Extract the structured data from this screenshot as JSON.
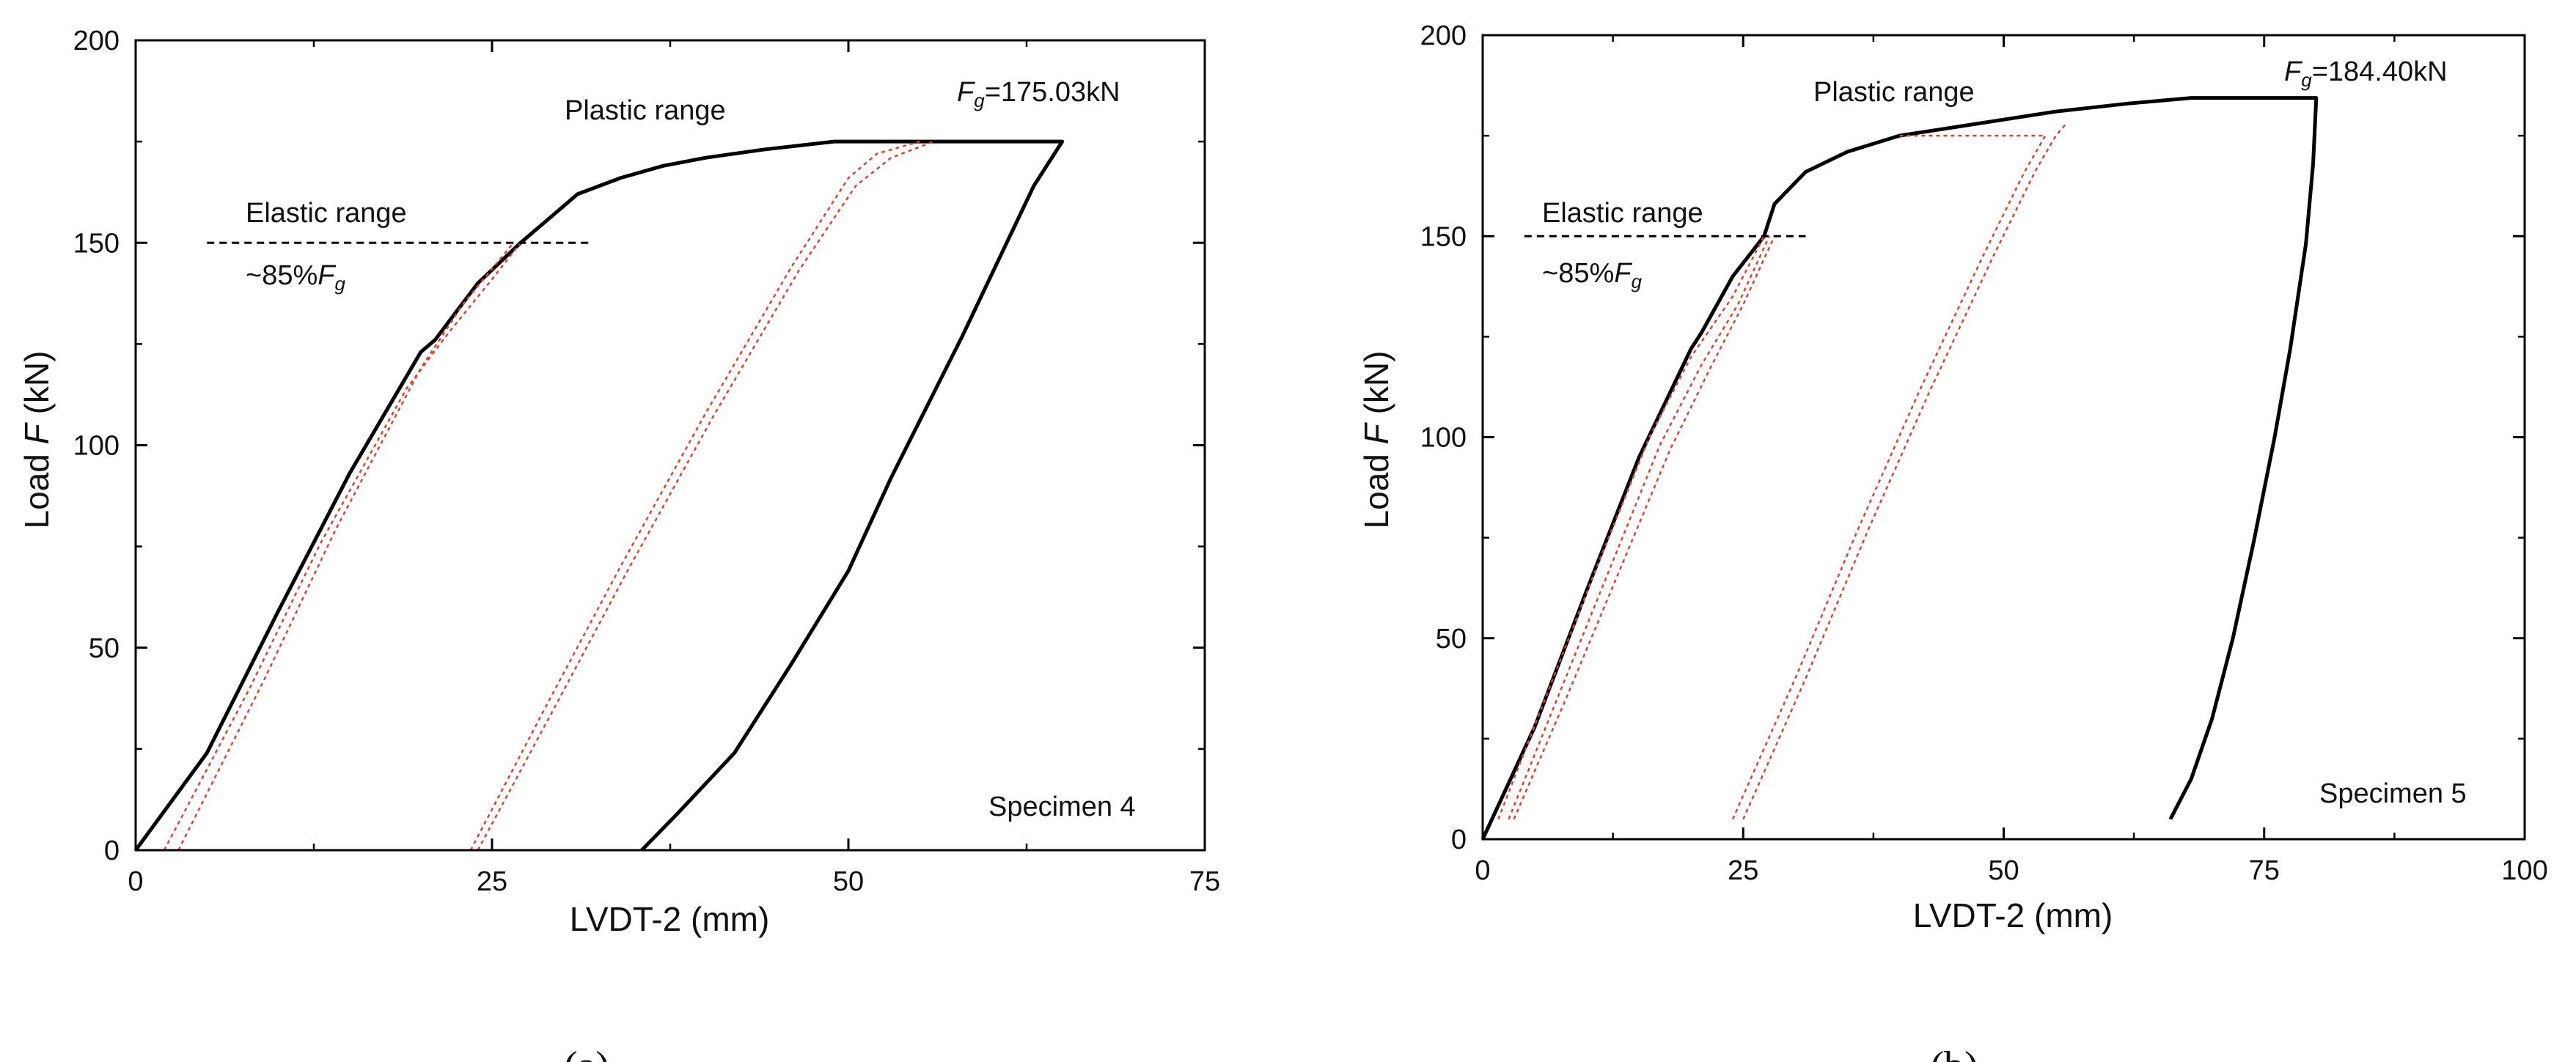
{
  "figure": {
    "caption_a": "(a)",
    "caption_b": "(b)"
  },
  "chart_data": [
    {
      "type": "line",
      "panel": "a",
      "title": "",
      "xlabel": "LVDT-2 (mm)",
      "ylabel_prefix": "Load ",
      "ylabel_var": "F",
      "ylabel_suffix": " (kN)",
      "xlim": [
        0,
        75
      ],
      "ylim": [
        0,
        200
      ],
      "xticks": [
        0,
        25,
        50,
        75
      ],
      "yticks": [
        0,
        50,
        100,
        150,
        200
      ],
      "grid": false,
      "colors": {
        "main": "#000000",
        "cycles": "#d9442e",
        "threshold": "#000000"
      },
      "annotations": {
        "specimen": "Specimen 4",
        "plastic": "Plastic range",
        "elastic": "Elastic range",
        "pct_prefix": "~85%",
        "fg_var": "F",
        "fg_sub": "g",
        "fg_value": "=175.03kN"
      },
      "threshold_line": {
        "x": [
          5,
          32
        ],
        "y": 150
      },
      "series": [
        {
          "style": "solid",
          "points": [
            [
              0,
              0
            ],
            [
              5,
              24
            ],
            [
              10,
              59
            ],
            [
              15,
              93
            ],
            [
              20,
              123
            ],
            [
              21,
              126
            ],
            [
              24,
              140
            ],
            [
              27,
              150
            ],
            [
              29,
              156
            ],
            [
              31,
              162
            ],
            [
              34,
              166
            ],
            [
              37,
              169
            ],
            [
              40,
              171
            ],
            [
              44,
              173
            ],
            [
              49,
              175
            ],
            [
              65,
              175
            ],
            [
              63,
              164
            ],
            [
              58,
              127
            ],
            [
              53,
              92
            ],
            [
              50,
              69
            ],
            [
              46,
              46
            ],
            [
              42,
              24
            ],
            [
              38,
              9
            ],
            [
              35.5,
              0
            ]
          ]
        },
        {
          "style": "dotted",
          "points": [
            [
              2,
              0
            ],
            [
              8,
              40
            ],
            [
              13,
              76
            ],
            [
              19,
              114
            ],
            [
              22,
              128
            ],
            [
              25,
              141
            ],
            [
              27,
              150
            ]
          ]
        },
        {
          "style": "dotted",
          "points": [
            [
              3,
              0
            ],
            [
              9,
              42
            ],
            [
              14,
              79
            ],
            [
              20,
              119
            ],
            [
              23,
              135
            ],
            [
              26.5,
              150
            ]
          ]
        },
        {
          "style": "dotted",
          "points": [
            [
              23.5,
              0
            ],
            [
              29,
              37
            ],
            [
              34,
              70
            ],
            [
              40,
              108
            ],
            [
              46,
              144
            ],
            [
              50,
              166
            ],
            [
              52,
              172
            ],
            [
              55,
              175
            ]
          ]
        },
        {
          "style": "dotted",
          "points": [
            [
              24,
              0
            ],
            [
              29.5,
              36
            ],
            [
              34.5,
              69
            ],
            [
              40.5,
              107
            ],
            [
              46.5,
              143
            ],
            [
              50.5,
              164
            ],
            [
              53,
              171
            ],
            [
              56,
              175
            ]
          ]
        }
      ]
    },
    {
      "type": "line",
      "panel": "b",
      "title": "",
      "xlabel": "LVDT-2 (mm)",
      "ylabel_prefix": "Load ",
      "ylabel_var": "F",
      "ylabel_suffix": " (kN)",
      "xlim": [
        0,
        100
      ],
      "ylim": [
        0,
        200
      ],
      "xticks": [
        0,
        25,
        50,
        75,
        100
      ],
      "yticks": [
        0,
        50,
        100,
        150,
        200
      ],
      "grid": false,
      "colors": {
        "main": "#000000",
        "cycles": "#d9442e",
        "threshold": "#000000"
      },
      "annotations": {
        "specimen": "Specimen 5",
        "plastic": "Plastic range",
        "elastic": "Elastic range",
        "pct_prefix": "~85%",
        "fg_var": "F",
        "fg_sub": "g",
        "fg_value": "=184.40kN"
      },
      "threshold_line": {
        "x": [
          4,
          31
        ],
        "y": 150
      },
      "series": [
        {
          "style": "solid",
          "points": [
            [
              0,
              0
            ],
            [
              5,
              28
            ],
            [
              10,
              62
            ],
            [
              15,
              95
            ],
            [
              20,
              122
            ],
            [
              21,
              126
            ],
            [
              24,
              140
            ],
            [
              27,
              150
            ],
            [
              28,
              158
            ],
            [
              31,
              166
            ],
            [
              35,
              171
            ],
            [
              40,
              175
            ],
            [
              45,
              177
            ],
            [
              50,
              179
            ],
            [
              55,
              181
            ],
            [
              62,
              183
            ],
            [
              68,
              184.4
            ],
            [
              80,
              184.4
            ],
            [
              79.7,
              168
            ],
            [
              79,
              148
            ],
            [
              77.5,
              122
            ],
            [
              76,
              100
            ],
            [
              74,
              74
            ],
            [
              72,
              50
            ],
            [
              70,
              30
            ],
            [
              68,
              15
            ],
            [
              66,
              5
            ]
          ]
        },
        {
          "style": "dotted",
          "points": [
            [
              1.5,
              5
            ],
            [
              6,
              35
            ],
            [
              11,
              68
            ],
            [
              16,
              100
            ],
            [
              20,
              120
            ],
            [
              24,
              135
            ],
            [
              27,
              150
            ]
          ]
        },
        {
          "style": "dotted",
          "points": [
            [
              2.5,
              5
            ],
            [
              7,
              34
            ],
            [
              12,
              66
            ],
            [
              17,
              98
            ],
            [
              21,
              118
            ],
            [
              24.5,
              133
            ],
            [
              27.5,
              150
            ]
          ]
        },
        {
          "style": "dotted",
          "points": [
            [
              3,
              5
            ],
            [
              8,
              35
            ],
            [
              13,
              66
            ],
            [
              18,
              97
            ],
            [
              22,
              118
            ],
            [
              25,
              133
            ],
            [
              28,
              150
            ]
          ]
        },
        {
          "style": "dotted",
          "points": [
            [
              24,
              5
            ],
            [
              30,
              40
            ],
            [
              36,
              77
            ],
            [
              42,
              112
            ],
            [
              48,
              145
            ],
            [
              52,
              166
            ],
            [
              54,
              175
            ]
          ]
        },
        {
          "style": "dotted",
          "points": [
            [
              25,
              5
            ],
            [
              31,
              40
            ],
            [
              37,
              77
            ],
            [
              43,
              112
            ],
            [
              49,
              145
            ],
            [
              53,
              166
            ],
            [
              55,
              175
            ],
            [
              56,
              178
            ]
          ]
        },
        {
          "style": "dotted",
          "points": [
            [
              40,
              175
            ],
            [
              54,
              175
            ]
          ]
        }
      ]
    }
  ]
}
